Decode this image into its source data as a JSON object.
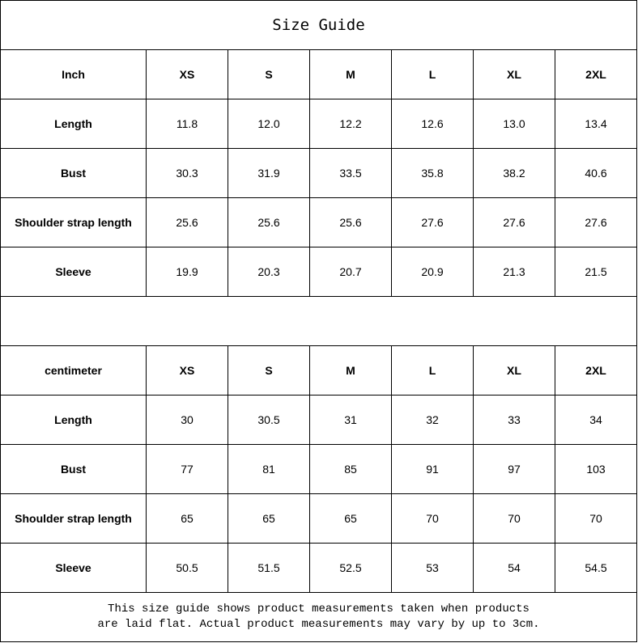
{
  "title": "Size Guide",
  "sizes": [
    "XS",
    "S",
    "M",
    "L",
    "XL",
    "2XL"
  ],
  "tables": [
    {
      "unit": "Inch",
      "rows": [
        {
          "label": "Length",
          "values": [
            "11.8",
            "12.0",
            "12.2",
            "12.6",
            "13.0",
            "13.4"
          ]
        },
        {
          "label": "Bust",
          "values": [
            "30.3",
            "31.9",
            "33.5",
            "35.8",
            "38.2",
            "40.6"
          ]
        },
        {
          "label": "Shoulder strap length",
          "values": [
            "25.6",
            "25.6",
            "25.6",
            "27.6",
            "27.6",
            "27.6"
          ]
        },
        {
          "label": "Sleeve",
          "values": [
            "19.9",
            "20.3",
            "20.7",
            "20.9",
            "21.3",
            "21.5"
          ]
        }
      ]
    },
    {
      "unit": "centimeter",
      "rows": [
        {
          "label": "Length",
          "values": [
            "30",
            "30.5",
            "31",
            "32",
            "33",
            "34"
          ]
        },
        {
          "label": "Bust",
          "values": [
            "77",
            "81",
            "85",
            "91",
            "97",
            "103"
          ]
        },
        {
          "label": "Shoulder strap length",
          "values": [
            "65",
            "65",
            "65",
            "70",
            "70",
            "70"
          ]
        },
        {
          "label": "Sleeve",
          "values": [
            "50.5",
            "51.5",
            "52.5",
            "53",
            "54",
            "54.5"
          ]
        }
      ]
    }
  ],
  "note_lines": [
    "This size guide shows product measurements taken when products",
    "are laid flat. Actual product measurements may vary by up to 3cm."
  ]
}
